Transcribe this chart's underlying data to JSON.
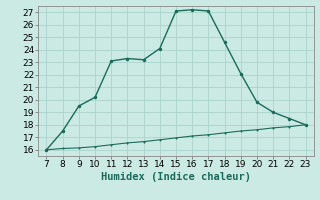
{
  "xlabel": "Humidex (Indice chaleur)",
  "x_humidex": [
    7,
    8,
    9,
    10,
    11,
    12,
    13,
    14,
    15,
    16,
    17,
    18,
    19,
    20,
    21,
    22,
    23
  ],
  "y_curve1": [
    16,
    17.5,
    19.5,
    20.2,
    23.1,
    23.3,
    23.2,
    24.1,
    27.1,
    27.2,
    27.1,
    24.6,
    22.1,
    19.8,
    19.0,
    18.5,
    18.0
  ],
  "y_curve2": [
    16.0,
    16.1,
    16.15,
    16.25,
    16.4,
    16.55,
    16.65,
    16.8,
    16.95,
    17.1,
    17.2,
    17.35,
    17.5,
    17.6,
    17.75,
    17.85,
    18.0
  ],
  "line_color": "#1a6b5a",
  "bg_color": "#cceae4",
  "grid_color": "#aad4cc",
  "xlim": [
    6.5,
    23.5
  ],
  "ylim": [
    15.5,
    27.5
  ],
  "xticks": [
    7,
    8,
    9,
    10,
    11,
    12,
    13,
    14,
    15,
    16,
    17,
    18,
    19,
    20,
    21,
    22,
    23
  ],
  "yticks": [
    16,
    17,
    18,
    19,
    20,
    21,
    22,
    23,
    24,
    25,
    26,
    27
  ],
  "tick_fontsize": 6.5,
  "xlabel_fontsize": 7.5
}
